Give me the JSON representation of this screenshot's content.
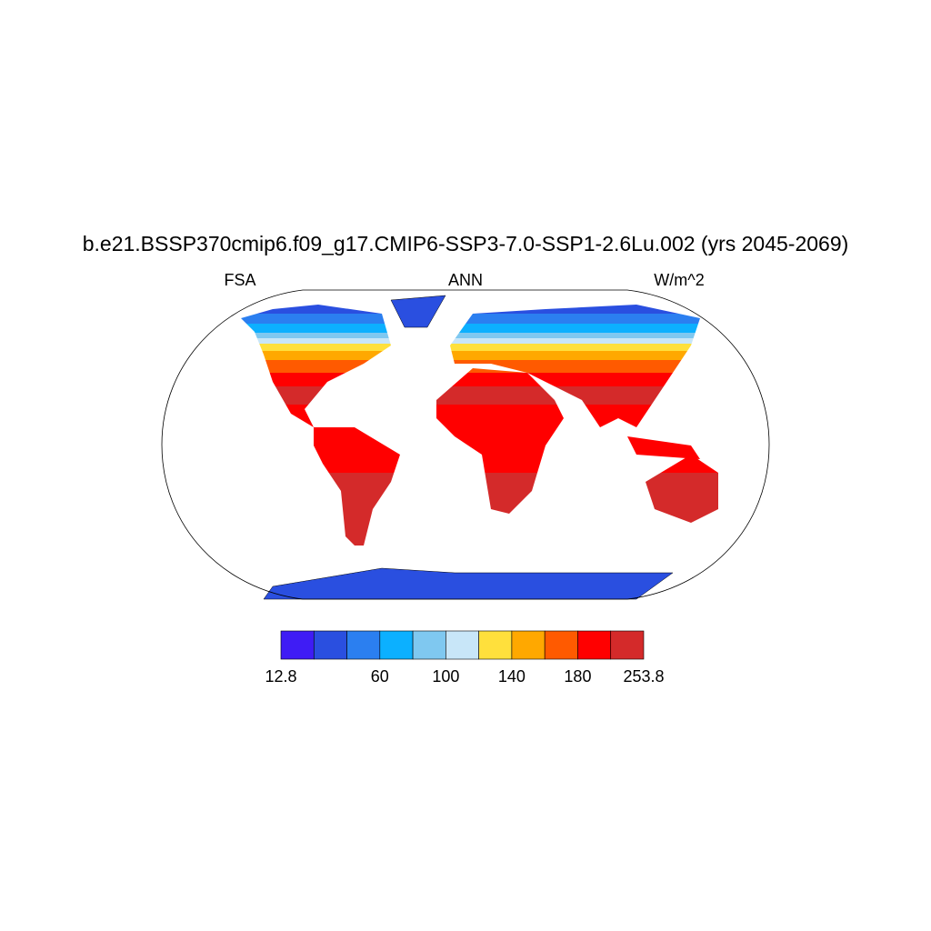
{
  "title": "b.e21.BSSP370cmip6.f09_g17.CMIP6-SSP3-7.0-SSP1-2.6Lu.002 (yrs 2045-2069)",
  "left_label": "FSA",
  "center_label": "ANN",
  "right_label": "W/m^2",
  "colorbar": {
    "colors": [
      "#3f1cf5",
      "#2a4fe0",
      "#2b7ff0",
      "#0cb0ff",
      "#7fc8f0",
      "#c8e6f8",
      "#ffe03c",
      "#ffa800",
      "#ff5a00",
      "#ff0000",
      "#d42a2a"
    ],
    "levels": [
      12.8,
      null,
      null,
      60,
      null,
      100,
      null,
      140,
      null,
      180,
      null,
      253.8
    ]
  }
}
